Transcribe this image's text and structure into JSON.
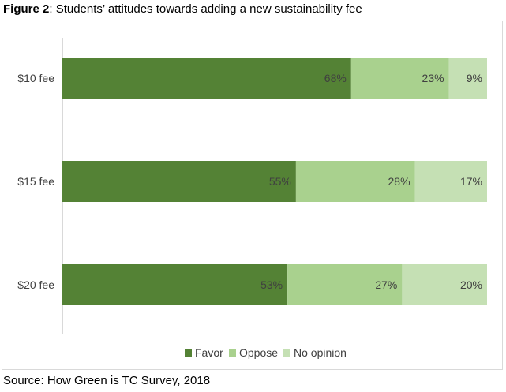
{
  "caption": {
    "lead": "Figure 2",
    "rest": ": Students’ attitudes towards adding a new sustainability fee"
  },
  "source": "Source: How Green is TC Survey, 2018",
  "colors": {
    "favor": "#548235",
    "oppose": "#a9d18e",
    "no_opinion": "#c5e0b4",
    "axis": "#d9d9d9",
    "text": "#404040"
  },
  "chart_data": {
    "type": "bar",
    "orientation": "horizontal",
    "stacked": "100%",
    "categories": [
      "$10 fee",
      "$15 fee",
      "$20 fee"
    ],
    "series": [
      {
        "name": "Favor",
        "values": [
          68,
          55,
          53
        ],
        "labels": [
          "68%",
          "55%",
          "53%"
        ]
      },
      {
        "name": "Oppose",
        "values": [
          23,
          28,
          27
        ],
        "labels": [
          "23%",
          "28%",
          "27%"
        ]
      },
      {
        "name": "No opinion",
        "values": [
          9,
          17,
          20
        ],
        "labels": [
          "9%",
          "17%",
          "20%"
        ]
      }
    ],
    "xlim": [
      0,
      100
    ],
    "grid": false,
    "legend_position": "bottom"
  }
}
